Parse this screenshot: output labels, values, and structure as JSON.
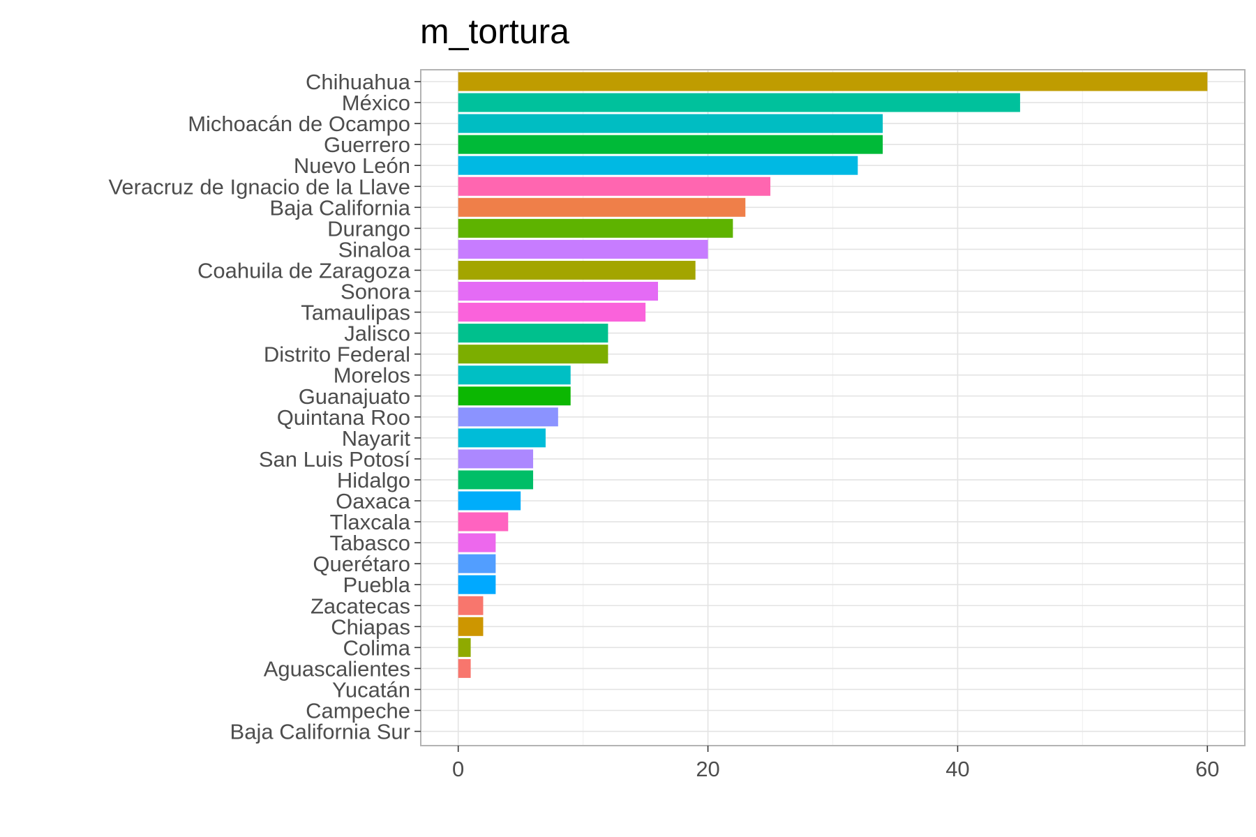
{
  "chart_data": {
    "type": "bar",
    "orientation": "horizontal",
    "title": "m_tortura",
    "xlabel": "",
    "ylabel": "",
    "xlim": [
      -3,
      63
    ],
    "x_ticks": [
      0,
      20,
      40,
      60
    ],
    "x_tick_labels": [
      "0",
      "20",
      "40",
      "60"
    ],
    "grid": true,
    "legend": "none",
    "categories": [
      "Chihuahua",
      "México",
      "Michoacán de Ocampo",
      "Guerrero",
      "Nuevo León",
      "Veracruz de Ignacio de la Llave",
      "Baja California",
      "Durango",
      "Sinaloa",
      "Coahuila de Zaragoza",
      "Sonora",
      "Tamaulipas",
      "Jalisco",
      "Distrito Federal",
      "Morelos",
      "Guanajuato",
      "Quintana Roo",
      "Nayarit",
      "San Luis Potosí",
      "Hidalgo",
      "Oaxaca",
      "Tlaxcala",
      "Tabasco",
      "Querétaro",
      "Puebla",
      "Zacatecas",
      "Chiapas",
      "Colima",
      "Aguascalientes",
      "Yucatán",
      "Campeche",
      "Baja California Sur"
    ],
    "values": [
      60,
      45,
      34,
      34,
      32,
      25,
      23,
      22,
      20,
      19,
      16,
      15,
      12,
      12,
      9,
      9,
      8,
      7,
      6,
      6,
      5,
      4,
      3,
      3,
      3,
      2,
      2,
      1,
      1,
      0,
      0,
      0
    ],
    "colors": [
      "#BF9C00",
      "#00C19C",
      "#00BDC2",
      "#00BA38",
      "#00B9E3",
      "#FF66B0",
      "#EF7F49",
      "#5EB300",
      "#C77CFF",
      "#A3A500",
      "#E46BF5",
      "#FA62DB",
      "#00C08D",
      "#7CAE00",
      "#00BFC4",
      "#0CB702",
      "#8B93FF",
      "#00BCD8",
      "#AC88FF",
      "#00BE67",
      "#00ADFA",
      "#FF63C0",
      "#ED68ED",
      "#529EFF",
      "#00A9FF",
      "#F8766D",
      "#CD9600",
      "#8FAA00",
      "#F8766D",
      "#E76BF3",
      "#00C1A9",
      "#FF6C91"
    ]
  }
}
